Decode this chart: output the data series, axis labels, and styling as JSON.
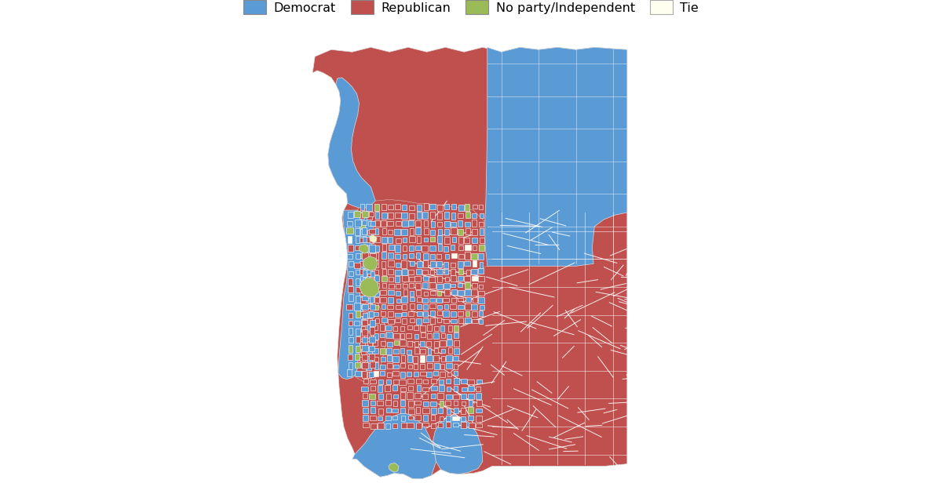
{
  "background_color": "#ffffff",
  "legend": [
    {
      "label": "Democrat",
      "color": "#5b9bd5"
    },
    {
      "label": "Republican",
      "color": "#c0504d"
    },
    {
      "label": "No party/Independent",
      "color": "#9bbb59"
    },
    {
      "label": "Tie",
      "color": "#fffff0"
    }
  ],
  "democrat_color": "#5b9bd5",
  "republican_color": "#c0504d",
  "independent_color": "#9bbb59",
  "tie_color": "#fffff0",
  "border_color": "#ffffff",
  "figsize": [
    12.0,
    6.3
  ],
  "dpi": 100
}
